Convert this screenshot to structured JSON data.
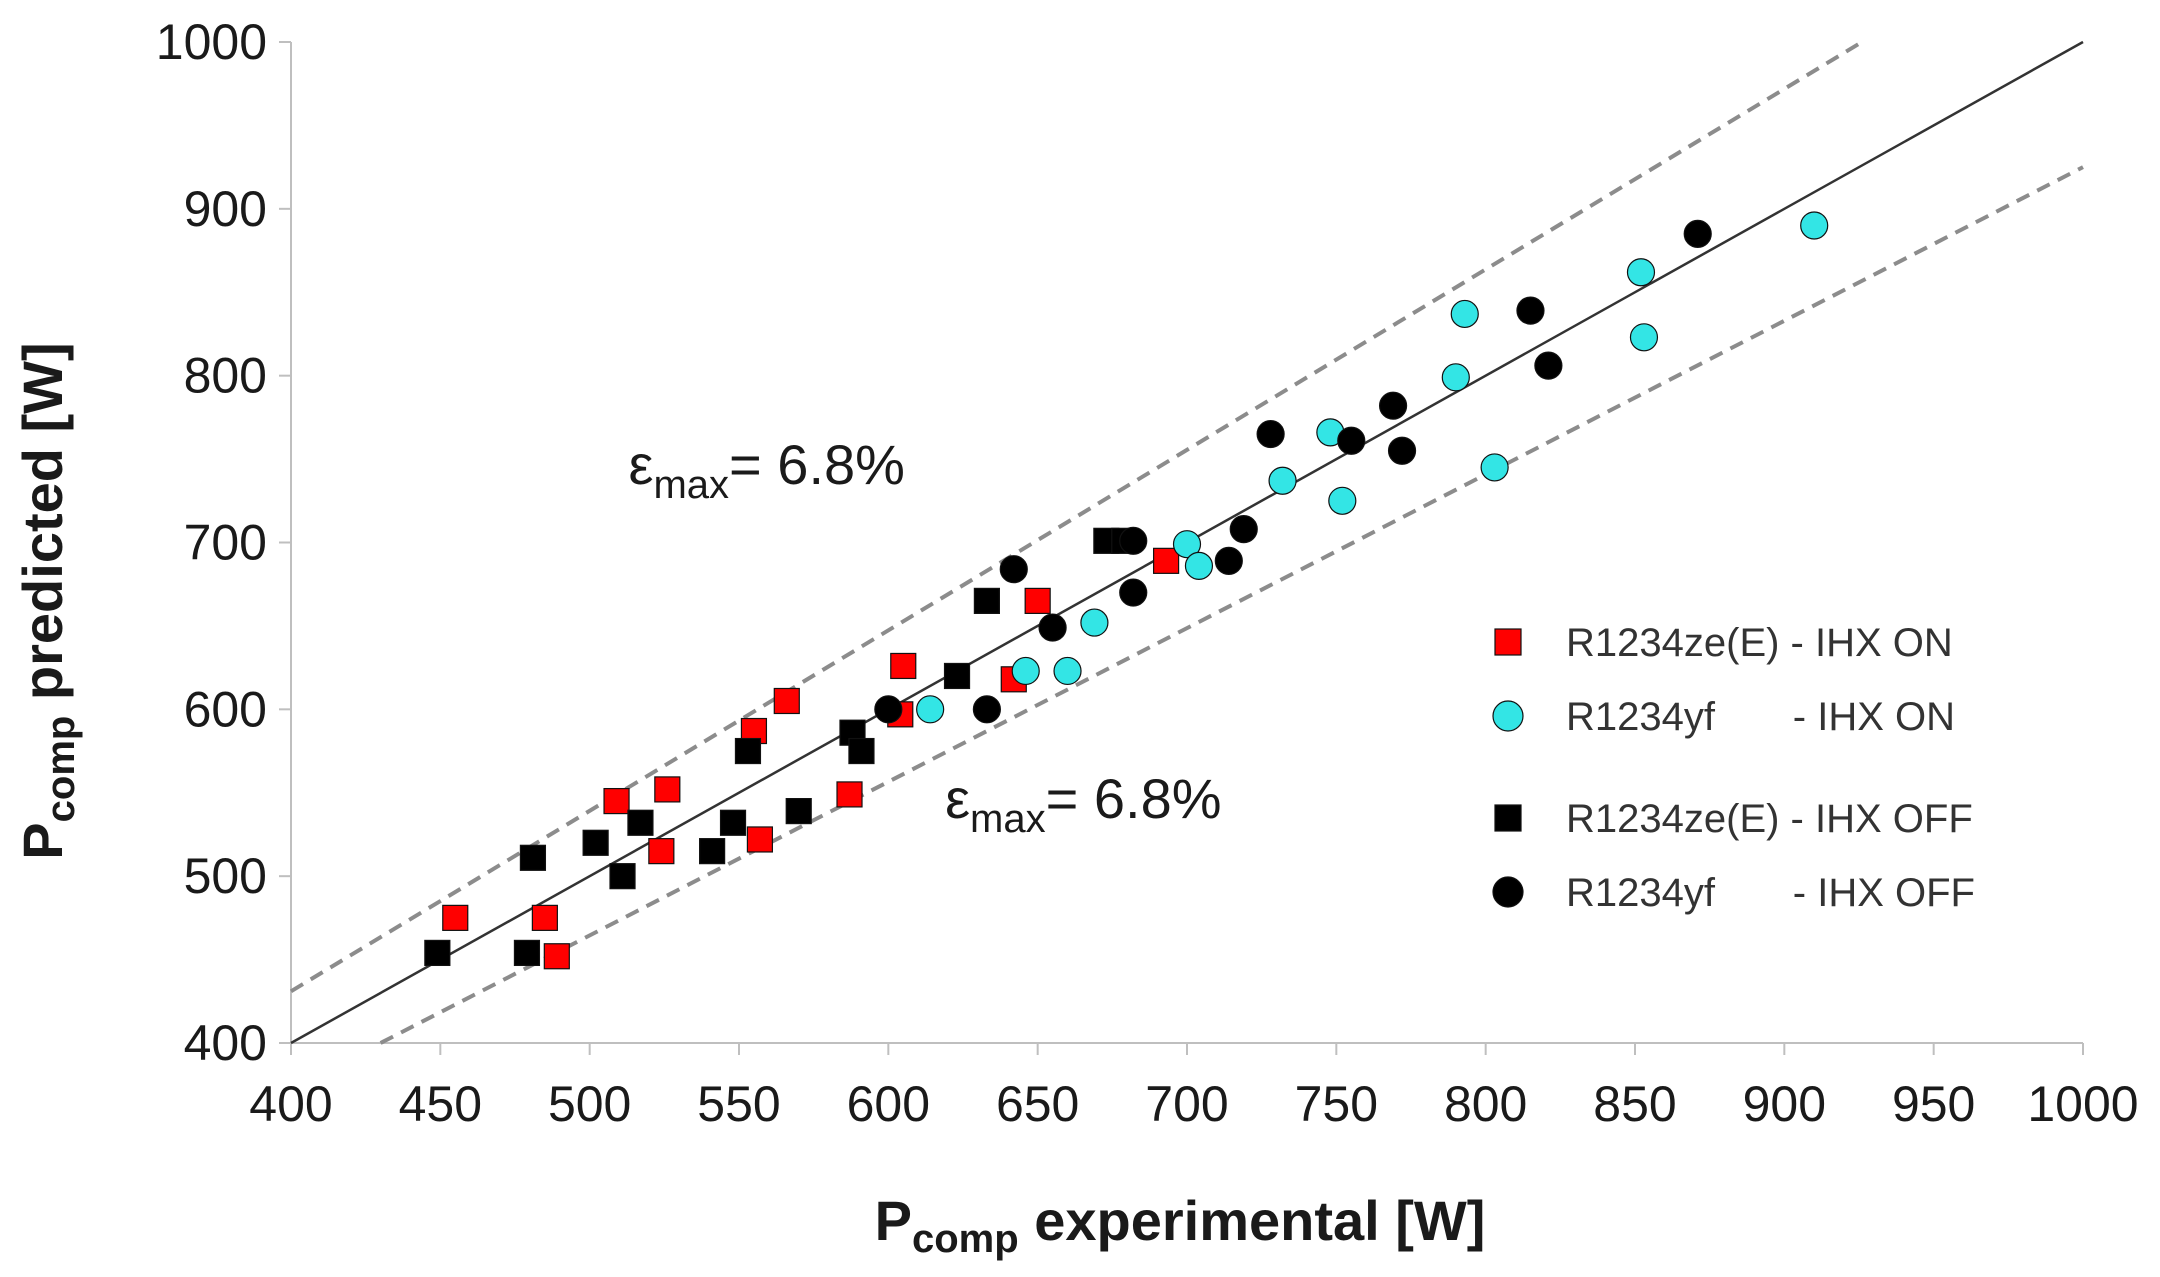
{
  "chart_data": {
    "type": "scatter",
    "xlabel": {
      "main": "P",
      "sub": "comp",
      "rest": " experimental [W]"
    },
    "ylabel": {
      "main": "P",
      "sub": "comp",
      "rest": " predicted [W]"
    },
    "xlim": [
      400,
      1000
    ],
    "ylim": [
      400,
      1000
    ],
    "x_ticks": [
      400,
      450,
      500,
      550,
      600,
      650,
      700,
      750,
      800,
      850,
      900,
      950,
      1000
    ],
    "y_ticks": [
      400,
      500,
      600,
      700,
      800,
      900,
      1000
    ],
    "reference_lines": [
      {
        "name": "parity",
        "style": "solid",
        "color": "#333333",
        "points": [
          [
            400,
            400
          ],
          [
            1000,
            1000
          ]
        ]
      },
      {
        "name": "upper-bound",
        "style": "dashed",
        "color": "#8c8c8c",
        "points": [
          [
            400,
            431
          ],
          [
            926,
            1000
          ]
        ]
      },
      {
        "name": "lower-bound",
        "style": "dashed",
        "color": "#8c8c8c",
        "points": [
          [
            430,
            400
          ],
          [
            1000,
            925
          ]
        ]
      }
    ],
    "annotations": [
      {
        "name": "upper-annotation",
        "prefix": "ε",
        "sub": "max",
        "suffix": "=  6.8%",
        "x": 513,
        "y": 735
      },
      {
        "name": "lower-annotation",
        "prefix": "ε",
        "sub": "max",
        "suffix": "=  6.8%",
        "x": 619,
        "y": 535
      }
    ],
    "series": [
      {
        "name": "R1234ze(E) - IHX ON",
        "legend_label": "R1234ze(E) - IHX ON",
        "marker": "square",
        "color": "#ff0000",
        "points": [
          [
            455,
            475
          ],
          [
            485,
            475
          ],
          [
            489,
            452
          ],
          [
            509,
            545
          ],
          [
            524,
            515
          ],
          [
            526,
            552
          ],
          [
            555,
            587
          ],
          [
            557,
            522
          ],
          [
            566,
            605
          ],
          [
            587,
            549
          ],
          [
            604,
            597
          ],
          [
            605,
            626
          ],
          [
            642,
            618
          ],
          [
            650,
            665
          ],
          [
            693,
            689
          ]
        ]
      },
      {
        "name": "R1234yf - IHX ON",
        "legend_label": "R1234yf       - IHX ON",
        "marker": "circle",
        "color": "#33e5e5",
        "points": [
          [
            614,
            600
          ],
          [
            646,
            623
          ],
          [
            660,
            623
          ],
          [
            669,
            652
          ],
          [
            700,
            699
          ],
          [
            704,
            686
          ],
          [
            732,
            737
          ],
          [
            748,
            766
          ],
          [
            752,
            725
          ],
          [
            790,
            799
          ],
          [
            793,
            837
          ],
          [
            803,
            745
          ],
          [
            852,
            862
          ],
          [
            853,
            823
          ],
          [
            910,
            890
          ]
        ]
      },
      {
        "name": "R1234ze(E) - IHX OFF",
        "legend_label": "R1234ze(E) - IHX OFF",
        "marker": "square",
        "color": "#000000",
        "points": [
          [
            449,
            454
          ],
          [
            479,
            454
          ],
          [
            481,
            511
          ],
          [
            502,
            520
          ],
          [
            511,
            500
          ],
          [
            517,
            532
          ],
          [
            541,
            515
          ],
          [
            548,
            532
          ],
          [
            553,
            575
          ],
          [
            570,
            539
          ],
          [
            588,
            586
          ],
          [
            591,
            575
          ],
          [
            623,
            620
          ],
          [
            633,
            665
          ],
          [
            673,
            701
          ],
          [
            679,
            701
          ]
        ]
      },
      {
        "name": "R1234yf - IHX OFF",
        "legend_label": "R1234yf       - IHX OFF",
        "marker": "circle",
        "color": "#000000",
        "points": [
          [
            600,
            600
          ],
          [
            633,
            600
          ],
          [
            642,
            684
          ],
          [
            655,
            649
          ],
          [
            682,
            670
          ],
          [
            682,
            701
          ],
          [
            714,
            689
          ],
          [
            719,
            708
          ],
          [
            728,
            765
          ],
          [
            755,
            761
          ],
          [
            769,
            782
          ],
          [
            772,
            755
          ],
          [
            815,
            839
          ],
          [
            821,
            806
          ],
          [
            871,
            885
          ]
        ]
      }
    ]
  }
}
